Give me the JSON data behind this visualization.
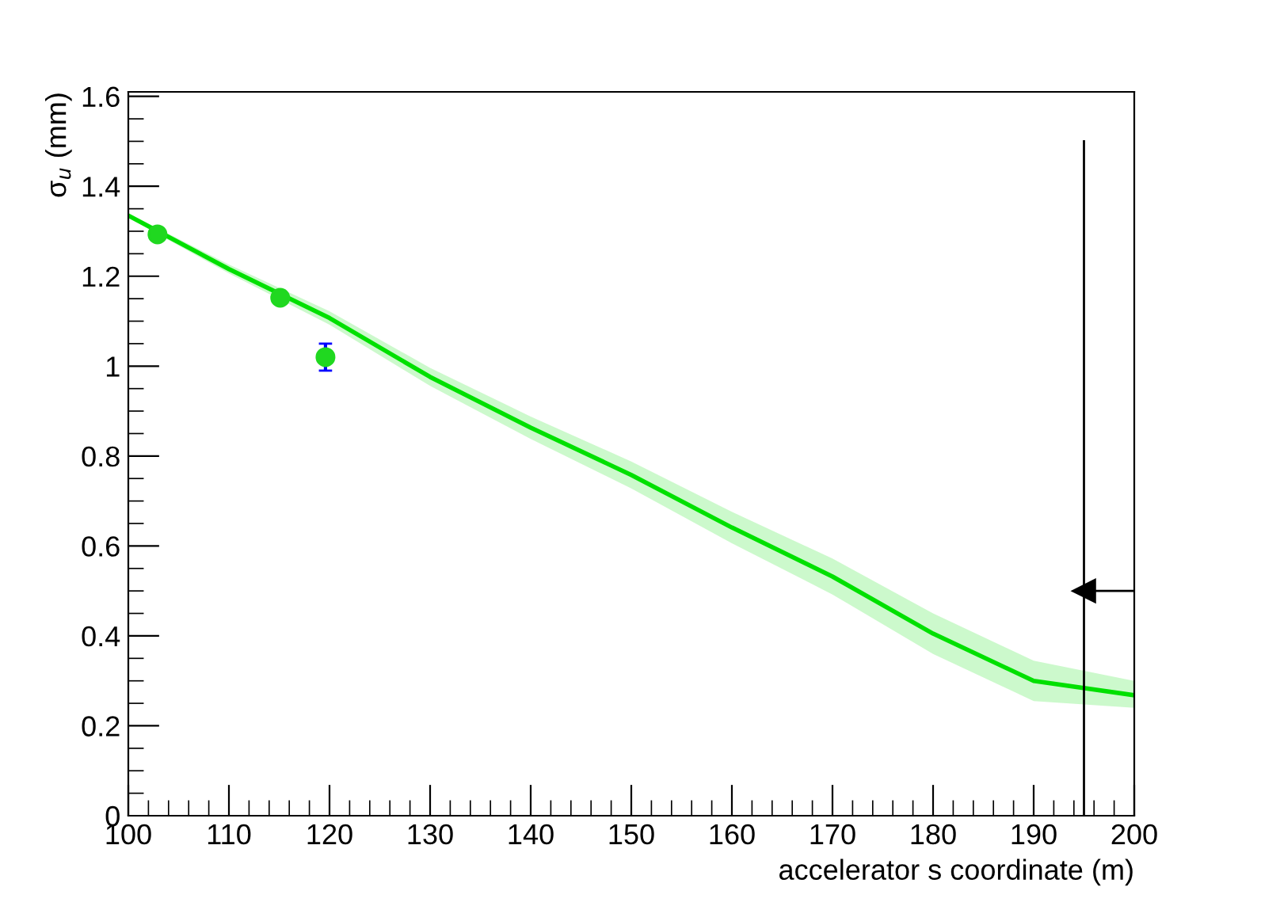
{
  "chart_data": {
    "type": "line",
    "xlabel": "accelerator s coordinate (m)",
    "ylabel": "σ$_{u}$ (mm)",
    "xlim": [
      100,
      200
    ],
    "ylim": [
      0,
      1.61
    ],
    "xticks": [
      100,
      110,
      120,
      130,
      140,
      150,
      160,
      170,
      180,
      190,
      200
    ],
    "yticks": [
      0,
      {
        "value": 0.2,
        "label": "0.2"
      },
      {
        "value": 0.4,
        "label": "0.4"
      },
      {
        "value": 0.6,
        "label": "0.6"
      },
      {
        "value": 0.8,
        "label": "0.8"
      },
      1,
      {
        "value": 1.2,
        "label": "1.2"
      },
      {
        "value": 1.4,
        "label": "1.4"
      },
      {
        "value": 1.6,
        "label": "1.6"
      }
    ],
    "grid": false,
    "legend": false,
    "series": [
      {
        "type": "line",
        "color": "#00e000",
        "x": [
          100,
          110,
          120,
          130,
          140,
          150,
          160,
          170,
          180,
          190,
          200
        ],
        "values": [
          1.335,
          1.216,
          1.107,
          0.976,
          0.863,
          0.758,
          0.641,
          0.532,
          0.405,
          0.3,
          0.268
        ],
        "lower": [
          1.33,
          1.206,
          1.092,
          0.956,
          0.838,
          0.728,
          0.606,
          0.492,
          0.36,
          0.255,
          0.24
        ],
        "upper": [
          1.34,
          1.226,
          1.122,
          0.996,
          0.888,
          0.788,
          0.676,
          0.572,
          0.45,
          0.345,
          0.3
        ]
      },
      {
        "type": "scatter",
        "color": "#20d820",
        "marker": "circle",
        "x": [
          102.9,
          115.1,
          119.6
        ],
        "values": [
          1.293,
          1.152,
          1.02
        ],
        "errors": [
          null,
          null,
          0.03
        ]
      },
      {
        "type": "line",
        "color": "#000000",
        "x": [
          195,
          195
        ],
        "values": [
          0,
          1.5
        ]
      },
      {
        "type": "line",
        "color": "#000000",
        "marker": "triangle",
        "x": [
          200,
          195
        ],
        "values": [
          0.5,
          0.5
        ]
      }
    ]
  }
}
